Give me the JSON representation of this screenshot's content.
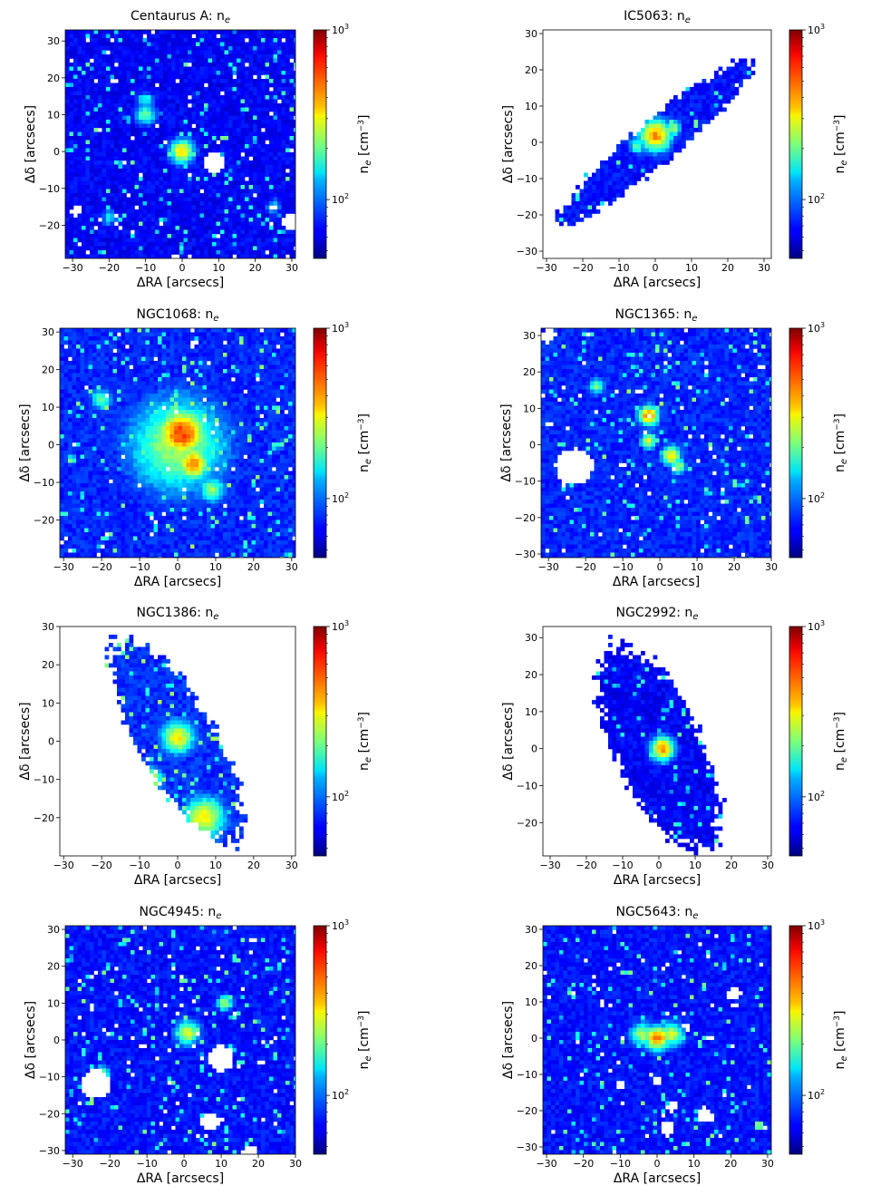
{
  "chart_data": [
    {
      "type": "heatmap",
      "title": "Centaurus A: n",
      "title_subscript": "e",
      "xlabel": "ΔRA [arcsecs]",
      "ylabel": "Δδ [arcsecs]",
      "xlim": [
        -32,
        31
      ],
      "ylim": [
        -29,
        33
      ],
      "xticks": [
        -30,
        -20,
        -10,
        0,
        10,
        20,
        30
      ],
      "yticks": [
        -20,
        -10,
        0,
        10,
        20,
        30
      ],
      "colorbar": {
        "label": "n",
        "label_subscript": "e",
        "unit": "[cm",
        "unit_exp": "−3",
        "unit_close": "]",
        "scale": "log",
        "min": 45,
        "max": 1000,
        "tick_base": "10",
        "ticks": [
          {
            "value": 100,
            "exp": "2"
          },
          {
            "value": 1000,
            "exp": "3"
          }
        ]
      },
      "colormap": "jet",
      "background_level": 0.08,
      "fill_extent": "full",
      "features": [
        {
          "x": 0,
          "y": 0,
          "r": 3,
          "level": 0.62
        },
        {
          "x": -10,
          "y": 10,
          "r": 2.5,
          "level": 0.45
        },
        {
          "x": -10,
          "y": 14,
          "r": 2,
          "level": 0.35
        },
        {
          "x": -20,
          "y": -18,
          "r": 2,
          "level": 0.3
        },
        {
          "x": 25,
          "y": -15,
          "r": 2,
          "level": 0.3
        }
      ],
      "masked": [
        {
          "x": 9,
          "y": -3,
          "r": 2.8
        },
        {
          "x": -29,
          "y": -16,
          "r": 1.5
        },
        {
          "x": 30,
          "y": -19,
          "r": 2.5
        },
        {
          "x": 25,
          "y": -15,
          "r": 0.8
        }
      ]
    },
    {
      "type": "heatmap",
      "title": "IC5063: n",
      "title_subscript": "e",
      "xlabel": "ΔRA [arcsecs]",
      "ylabel": "Δδ [arcsecs]",
      "xlim": [
        -31,
        32
      ],
      "ylim": [
        -32,
        31
      ],
      "xticks": [
        -30,
        -20,
        -10,
        0,
        10,
        20,
        30
      ],
      "yticks": [
        -30,
        -20,
        -10,
        0,
        10,
        20,
        30
      ],
      "colorbar": {
        "label": "n",
        "label_subscript": "e",
        "unit": "[cm",
        "unit_exp": "−3",
        "unit_close": "]",
        "scale": "log",
        "min": 45,
        "max": 1000,
        "tick_base": "10",
        "ticks": [
          {
            "value": 100,
            "exp": "2"
          },
          {
            "value": 1000,
            "exp": "3"
          }
        ]
      },
      "colormap": "jet",
      "background_level": 0.1,
      "fill_extent": "bar",
      "bar": {
        "angle_deg": 40,
        "half_length": 34,
        "half_width": 6
      },
      "features": [
        {
          "x": 0,
          "y": 2,
          "r": 4,
          "level": 0.7
        },
        {
          "x": 5,
          "y": 4,
          "r": 2,
          "level": 0.5
        },
        {
          "x": -5,
          "y": -1,
          "r": 2,
          "level": 0.45
        }
      ],
      "masked": []
    },
    {
      "type": "heatmap",
      "title": "NGC1068: n",
      "title_subscript": "e",
      "xlabel": "ΔRA [arcsecs]",
      "ylabel": "Δδ [arcsecs]",
      "xlim": [
        -31,
        31
      ],
      "ylim": [
        -30,
        31
      ],
      "xticks": [
        -30,
        -20,
        -10,
        0,
        10,
        20,
        30
      ],
      "yticks": [
        -20,
        -10,
        0,
        10,
        20,
        30
      ],
      "colorbar": {
        "label": "n",
        "label_subscript": "e",
        "unit": "[cm",
        "unit_exp": "−3",
        "unit_close": "]",
        "scale": "log",
        "min": 45,
        "max": 1000,
        "tick_base": "10",
        "ticks": [
          {
            "value": 100,
            "exp": "2"
          },
          {
            "value": 1000,
            "exp": "3"
          }
        ]
      },
      "colormap": "jet",
      "background_level": 0.12,
      "fill_extent": "full",
      "features": [
        {
          "x": 0,
          "y": 0,
          "r": 12,
          "level": 0.5
        },
        {
          "x": 1,
          "y": 3,
          "r": 6,
          "level": 0.78
        },
        {
          "x": 4,
          "y": -5,
          "r": 4,
          "level": 0.7
        },
        {
          "x": -20,
          "y": 12,
          "r": 2.5,
          "level": 0.45
        },
        {
          "x": 9,
          "y": -12,
          "r": 3,
          "level": 0.5
        },
        {
          "x": -28,
          "y": -4,
          "r": 1,
          "level": 0.55
        },
        {
          "x": 27,
          "y": 0,
          "r": 1,
          "level": 0.5
        }
      ],
      "masked": [
        {
          "x": 4,
          "y": 27,
          "r": 1
        }
      ]
    },
    {
      "type": "heatmap",
      "title": "NGC1365: n",
      "title_subscript": "e",
      "xlabel": "ΔRA [arcsecs]",
      "ylabel": "Δδ [arcsecs]",
      "xlim": [
        -32,
        30
      ],
      "ylim": [
        -31,
        32
      ],
      "xticks": [
        -30,
        -20,
        -10,
        0,
        10,
        20,
        30
      ],
      "yticks": [
        -30,
        -20,
        -10,
        0,
        10,
        20,
        30
      ],
      "colorbar": {
        "label": "n",
        "label_subscript": "e",
        "unit": "[cm",
        "unit_exp": "−3",
        "unit_close": "]",
        "scale": "log",
        "min": 45,
        "max": 1000,
        "tick_base": "10",
        "ticks": [
          {
            "value": 100,
            "exp": "2"
          },
          {
            "value": 1000,
            "exp": "3"
          }
        ]
      },
      "colormap": "jet",
      "background_level": 0.12,
      "fill_extent": "full",
      "features": [
        {
          "x": -3,
          "y": 8,
          "r": 2.5,
          "level": 0.72
        },
        {
          "x": -3,
          "y": 1,
          "r": 2,
          "level": 0.55
        },
        {
          "x": 3,
          "y": -3,
          "r": 2.5,
          "level": 0.6
        },
        {
          "x": 5,
          "y": -6,
          "r": 2,
          "level": 0.5
        },
        {
          "x": -17,
          "y": 16,
          "r": 2,
          "level": 0.45
        }
      ],
      "masked": [
        {
          "x": -23,
          "y": -6,
          "r": 5
        },
        {
          "x": -30,
          "y": 30,
          "r": 2
        }
      ]
    },
    {
      "type": "heatmap",
      "title": "NGC1386: n",
      "title_subscript": "e",
      "xlabel": "ΔRA [arcsecs]",
      "ylabel": "Δδ [arcsecs]",
      "xlim": [
        -31,
        31
      ],
      "ylim": [
        -30,
        30
      ],
      "xticks": [
        -30,
        -20,
        -10,
        0,
        10,
        20,
        30
      ],
      "yticks": [
        -20,
        -10,
        0,
        10,
        20,
        30
      ],
      "colorbar": {
        "label": "n",
        "label_subscript": "e",
        "unit": "[cm",
        "unit_exp": "−3",
        "unit_close": "]",
        "scale": "log",
        "min": 45,
        "max": 1000,
        "tick_base": "10",
        "ticks": [
          {
            "value": 100,
            "exp": "2"
          },
          {
            "value": 1000,
            "exp": "3"
          }
        ]
      },
      "colormap": "jet",
      "background_level": 0.13,
      "fill_extent": "bar",
      "bar": {
        "angle_deg": 120,
        "half_length": 30,
        "half_width": 10
      },
      "features": [
        {
          "x": 0,
          "y": 1,
          "r": 4,
          "level": 0.6
        },
        {
          "x": 7,
          "y": -20,
          "r": 5,
          "level": 0.6
        },
        {
          "x": -7,
          "y": -10,
          "r": 3,
          "level": 0.55
        }
      ],
      "masked": []
    },
    {
      "type": "heatmap",
      "title": "NGC2992: n",
      "title_subscript": "e",
      "xlabel": "ΔRA [arcsecs]",
      "ylabel": "Δδ [arcsecs]",
      "xlim": [
        -32,
        31
      ],
      "ylim": [
        -29,
        33
      ],
      "xticks": [
        -30,
        -20,
        -10,
        0,
        10,
        20,
        30
      ],
      "yticks": [
        -20,
        -10,
        0,
        10,
        20,
        30
      ],
      "colorbar": {
        "label": "n",
        "label_subscript": "e",
        "unit": "[cm",
        "unit_exp": "−3",
        "unit_close": "]",
        "scale": "log",
        "min": 45,
        "max": 1000,
        "tick_base": "10",
        "ticks": [
          {
            "value": 100,
            "exp": "2"
          },
          {
            "value": 1000,
            "exp": "3"
          }
        ]
      },
      "colormap": "jet",
      "background_level": 0.08,
      "fill_extent": "bar",
      "bar": {
        "angle_deg": 115,
        "half_length": 30,
        "half_width": 12
      },
      "features": [
        {
          "x": 1,
          "y": 0,
          "r": 3,
          "level": 0.7
        }
      ],
      "masked": []
    },
    {
      "type": "heatmap",
      "title": "NGC4945: n",
      "title_subscript": "e",
      "xlabel": "ΔRA [arcsecs]",
      "ylabel": "Δδ [arcsecs]",
      "xlim": [
        -32,
        30
      ],
      "ylim": [
        -31,
        31
      ],
      "xticks": [
        -30,
        -20,
        -10,
        0,
        10,
        20,
        30
      ],
      "yticks": [
        -30,
        -20,
        -10,
        0,
        10,
        20,
        30
      ],
      "colorbar": {
        "label": "n",
        "label_subscript": "e",
        "unit": "[cm",
        "unit_exp": "−3",
        "unit_close": "]",
        "scale": "log",
        "min": 45,
        "max": 1000,
        "tick_base": "10",
        "ticks": [
          {
            "value": 100,
            "exp": "2"
          },
          {
            "value": 1000,
            "exp": "3"
          }
        ]
      },
      "colormap": "jet",
      "background_level": 0.1,
      "fill_extent": "full",
      "features": [
        {
          "x": 1,
          "y": 2,
          "r": 3,
          "level": 0.55
        },
        {
          "x": 11,
          "y": 10,
          "r": 2,
          "level": 0.5
        },
        {
          "x": -22,
          "y": -9,
          "r": 2,
          "level": 0.45
        }
      ],
      "masked": [
        {
          "x": 7,
          "y": -22,
          "r": 2.5
        },
        {
          "x": -25,
          "y": 9,
          "r": 1
        },
        {
          "x": -11,
          "y": -2,
          "r": 0.8
        },
        {
          "x": -6,
          "y": -23,
          "r": 0.8
        },
        {
          "x": 18,
          "y": -30,
          "r": 1.6
        },
        {
          "x": 10,
          "y": -5,
          "r": 3.5
        },
        {
          "x": -24,
          "y": -12,
          "r": 4
        }
      ]
    },
    {
      "type": "heatmap",
      "title": "NGC5643: n",
      "title_subscript": "e",
      "xlabel": "ΔRA [arcsecs]",
      "ylabel": "Δδ [arcsecs]",
      "xlim": [
        -31,
        31
      ],
      "ylim": [
        -32,
        31
      ],
      "xticks": [
        -30,
        -20,
        -10,
        0,
        10,
        20,
        30
      ],
      "yticks": [
        -30,
        -20,
        -10,
        0,
        10,
        20,
        30
      ],
      "colorbar": {
        "label": "n",
        "label_subscript": "e",
        "unit": "[cm",
        "unit_exp": "−3",
        "unit_close": "]",
        "scale": "log",
        "min": 45,
        "max": 1000,
        "tick_base": "10",
        "ticks": [
          {
            "value": 100,
            "exp": "2"
          },
          {
            "value": 1000,
            "exp": "3"
          }
        ]
      },
      "colormap": "jet",
      "background_level": 0.1,
      "fill_extent": "full",
      "features": [
        {
          "x": 0,
          "y": 0,
          "r": 3,
          "level": 0.75
        },
        {
          "x": 4,
          "y": 1,
          "r": 3,
          "level": 0.55
        },
        {
          "x": -4,
          "y": 1,
          "r": 3,
          "level": 0.5
        }
      ],
      "masked": [
        {
          "x": 21,
          "y": 12,
          "r": 1.8
        },
        {
          "x": 13,
          "y": -21,
          "r": 2
        },
        {
          "x": 3,
          "y": -25,
          "r": 2
        },
        {
          "x": 0,
          "y": -12,
          "r": 1.5
        },
        {
          "x": -10,
          "y": -13,
          "r": 1.5
        },
        {
          "x": 4,
          "y": -19,
          "r": 1.5
        },
        {
          "x": 14,
          "y": 0,
          "r": 1
        },
        {
          "x": -15,
          "y": 10,
          "r": 1
        },
        {
          "x": 8,
          "y": 3,
          "r": 1
        }
      ]
    }
  ]
}
